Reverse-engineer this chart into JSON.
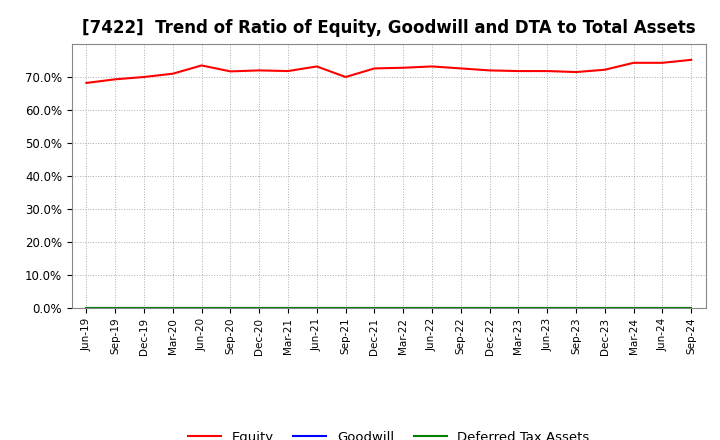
{
  "title": "[7422]  Trend of Ratio of Equity, Goodwill and DTA to Total Assets",
  "x_labels": [
    "Jun-19",
    "Sep-19",
    "Dec-19",
    "Mar-20",
    "Jun-20",
    "Sep-20",
    "Dec-20",
    "Mar-21",
    "Jun-21",
    "Sep-21",
    "Dec-21",
    "Mar-22",
    "Jun-22",
    "Sep-22",
    "Dec-22",
    "Mar-23",
    "Jun-23",
    "Sep-23",
    "Dec-23",
    "Mar-24",
    "Jun-24",
    "Sep-24"
  ],
  "equity": [
    0.682,
    0.693,
    0.7,
    0.71,
    0.735,
    0.717,
    0.72,
    0.718,
    0.732,
    0.7,
    0.726,
    0.728,
    0.732,
    0.726,
    0.72,
    0.718,
    0.718,
    0.715,
    0.722,
    0.743,
    0.743,
    0.752
  ],
  "goodwill": [
    0.0,
    0.0,
    0.0,
    0.0,
    0.0,
    0.0,
    0.0,
    0.0,
    0.0,
    0.0,
    0.0,
    0.0,
    0.0,
    0.0,
    0.0,
    0.0,
    0.0,
    0.0,
    0.0,
    0.0,
    0.0,
    0.0
  ],
  "dta": [
    0.0,
    0.0,
    0.0,
    0.0,
    0.0,
    0.0,
    0.0,
    0.0,
    0.0,
    0.0,
    0.0,
    0.0,
    0.0,
    0.0,
    0.0,
    0.0,
    0.0,
    0.0,
    0.0,
    0.0,
    0.0,
    0.0
  ],
  "equity_color": "#ff0000",
  "goodwill_color": "#0000ff",
  "dta_color": "#008000",
  "ylim": [
    0.0,
    0.8
  ],
  "yticks": [
    0.0,
    0.1,
    0.2,
    0.3,
    0.4,
    0.5,
    0.6,
    0.7
  ],
  "ytick_labels": [
    "0.0%",
    "10.0%",
    "20.0%",
    "30.0%",
    "40.0%",
    "50.0%",
    "60.0%",
    "70.0%"
  ],
  "background_color": "#ffffff",
  "plot_bg_color": "#ffffff",
  "grid_color": "#999999",
  "title_fontsize": 12,
  "legend_labels": [
    "Equity",
    "Goodwill",
    "Deferred Tax Assets"
  ]
}
